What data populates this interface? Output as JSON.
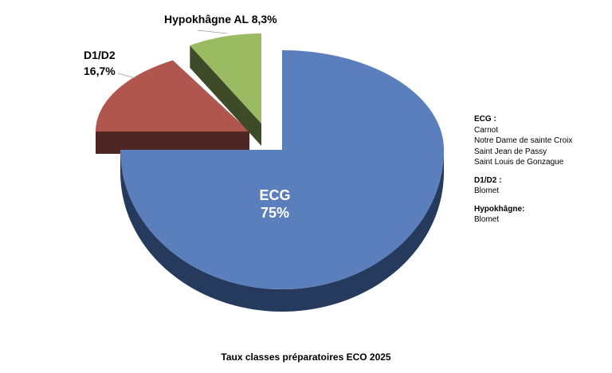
{
  "chart_data": {
    "type": "pie",
    "style": "3d-exploded",
    "title": "Taux classes préparatoires ECO 2025",
    "slices": [
      {
        "label": "ECG",
        "value": 75,
        "value_label": "75%",
        "color": "#5b7fbd",
        "side_color": "#263a5e"
      },
      {
        "label": "D1/D2",
        "value": 16.7,
        "value_label": "16,7%",
        "color": "#b0564f",
        "side_color": "#4e2624"
      },
      {
        "label": "Hypokhâgne AL",
        "value": 8.3,
        "value_label": "8,3%",
        "color": "#9bbb62",
        "side_color": "#3f4a28"
      }
    ],
    "legend": "right"
  },
  "notes": [
    {
      "heading": "ECG :",
      "items": [
        "Carnot",
        "Notre Dame de sainte Croix",
        "Saint Jean de Passy",
        "Saint Louis de Gonzague"
      ]
    },
    {
      "heading": "D1/D2 :",
      "items": [
        "Blomet"
      ]
    },
    {
      "heading": "Hypokhâgne:",
      "items": [
        "Blomet"
      ]
    }
  ]
}
